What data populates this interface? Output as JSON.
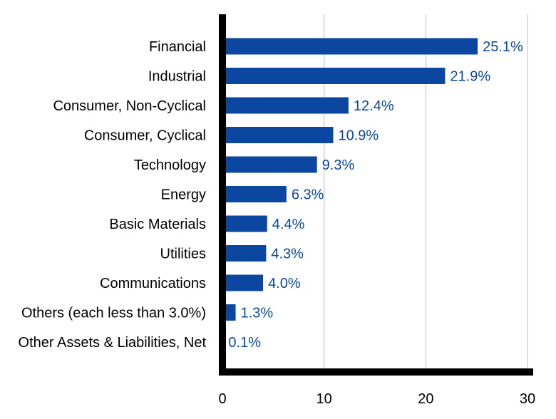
{
  "chart_data": {
    "type": "bar",
    "orientation": "horizontal",
    "title": "",
    "xlabel": "",
    "ylabel": "",
    "categories": [
      "Financial",
      "Industrial",
      "Consumer, Non-Cyclical",
      "Consumer, Cyclical",
      "Technology",
      "Energy",
      "Basic Materials",
      "Utilities",
      "Communications",
      "Others (each less than 3.0%)",
      "Other Assets & Liabilities, Net"
    ],
    "values": [
      25.1,
      21.9,
      12.4,
      10.9,
      9.3,
      6.3,
      4.4,
      4.3,
      4.0,
      1.3,
      0.1
    ],
    "value_labels": [
      "25.1%",
      "21.9%",
      "12.4%",
      "10.9%",
      "9.3%",
      "6.3%",
      "4.4%",
      "4.3%",
      "4.0%",
      "1.3%",
      "0.1%"
    ],
    "xlim": [
      0,
      30
    ],
    "xticks": [
      0,
      10,
      20,
      30
    ],
    "xtick_labels": [
      "0",
      "10",
      "20",
      "30"
    ],
    "grid": "vertical",
    "legend": "none"
  },
  "colors": {
    "bar": "#0b47a1",
    "value_label": "#0b47a1",
    "axis": "#000000",
    "grid": "#d3d3d3"
  }
}
